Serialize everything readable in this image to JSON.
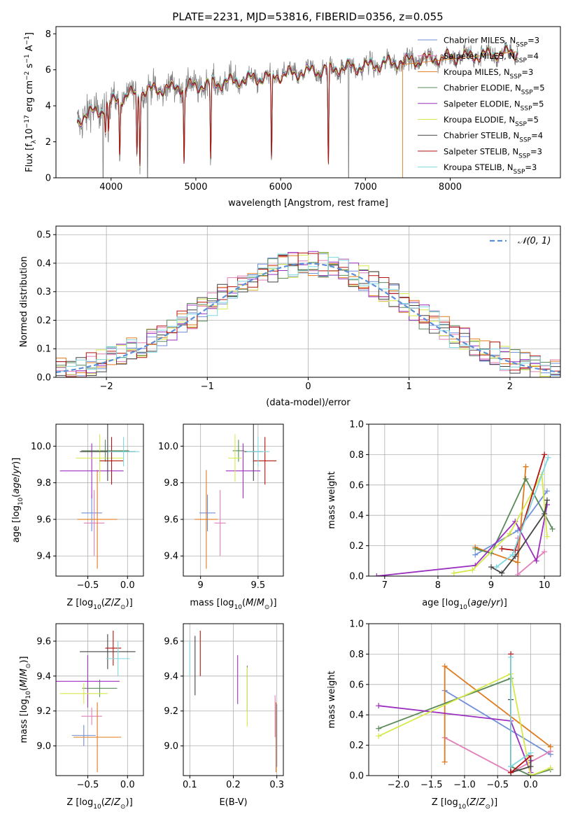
{
  "figure": {
    "title": "PLATE=2231, MJD=53816, FIBERID=0356, z=0.055"
  },
  "colors": {
    "spectrum": "#808080",
    "gaussian": "#5b8fd6",
    "grid": "#b0b0b0",
    "models": [
      "#6f8fd9",
      "#e07fb8",
      "#e07b1f",
      "#5a8a5a",
      "#9b30c0",
      "#d6e84a",
      "#444444",
      "#b3120f",
      "#7fd7df"
    ]
  },
  "models": [
    {
      "name": "Chabrier MILES",
      "nssp": "3"
    },
    {
      "name": "Salpeter MILES",
      "nssp": "4"
    },
    {
      "name": "Kroupa MILES",
      "nssp": "3"
    },
    {
      "name": "Chabrier ELODIE",
      "nssp": "5"
    },
    {
      "name": "Salpeter ELODIE",
      "nssp": "5"
    },
    {
      "name": "Kroupa ELODIE",
      "nssp": "5"
    },
    {
      "name": "Chabrier STELIB",
      "nssp": "4"
    },
    {
      "name": "Salpeter STELIB",
      "nssp": "3"
    },
    {
      "name": "Kroupa STELIB",
      "nssp": "3"
    }
  ],
  "chart_data": [
    {
      "id": "spectrum",
      "type": "line",
      "xlabel": "wavelength [Angstrom, rest frame]",
      "ylabel": "Flux [fλ10⁻¹⁷ erg cm⁻² s⁻¹ A⁻¹]",
      "xlim": [
        3350,
        9300
      ],
      "ylim": [
        0,
        8.4
      ],
      "xticks": [
        4000,
        5000,
        6000,
        7000,
        8000
      ],
      "yticks": [
        0,
        2,
        4,
        6,
        8
      ],
      "data_range": [
        3600,
        8800
      ],
      "continuum": [
        [
          3600,
          3.0
        ],
        [
          3700,
          3.6
        ],
        [
          3800,
          3.6
        ],
        [
          3900,
          3.8
        ],
        [
          4000,
          4.2
        ],
        [
          4200,
          4.6
        ],
        [
          4500,
          4.9
        ],
        [
          5000,
          5.1
        ],
        [
          5500,
          5.4
        ],
        [
          6000,
          5.7
        ],
        [
          6500,
          6.0
        ],
        [
          7000,
          6.2
        ],
        [
          7500,
          6.5
        ],
        [
          8000,
          6.7
        ],
        [
          8500,
          6.85
        ],
        [
          8800,
          7.0
        ]
      ],
      "absorption_lines": [
        [
          3934,
          2.6
        ],
        [
          3969,
          2.4
        ],
        [
          4102,
          1.2
        ],
        [
          4305,
          1.2
        ],
        [
          4340,
          1.0
        ],
        [
          4861,
          0.8
        ],
        [
          5175,
          0.9
        ],
        [
          5893,
          0.7
        ],
        [
          6563,
          0.5
        ]
      ],
      "dropouts": [
        [
          3905,
          0
        ],
        [
          4430,
          0
        ],
        [
          6802,
          0
        ]
      ]
    },
    {
      "id": "residuals",
      "type": "histogram",
      "xlabel": "(data-model)/error",
      "ylabel": "Normed distribution",
      "xlim": [
        -2.5,
        2.5
      ],
      "ylim": [
        0,
        0.53
      ],
      "xticks": [
        -2,
        -1,
        0,
        1,
        2
      ],
      "yticks": [
        0.0,
        0.1,
        0.2,
        0.3,
        0.4,
        0.5
      ],
      "bin_width": 0.1,
      "legend": "𝒩(0, 1)",
      "legend_position": "top-right",
      "gaussian": {
        "mu": 0,
        "sigma": 1
      }
    },
    {
      "id": "Z-age",
      "type": "scatter",
      "xlabel": "Z [log₁₀(Z/Z⊙)]",
      "ylabel": "age  [log₁₀(age/yr)]",
      "xlim": [
        -0.9,
        0.2
      ],
      "ylim": [
        9.29,
        10.12
      ],
      "xticks": [
        -0.5,
        0.0
      ],
      "yticks": [
        9.4,
        9.6,
        9.8,
        10.0
      ],
      "points": [
        {
          "x": -0.45,
          "y": 9.635,
          "xerr": 0.13,
          "yerr": 0.1
        },
        {
          "x": -0.42,
          "y": 9.58,
          "xerr": 0.13,
          "yerr": 0.18
        },
        {
          "x": -0.38,
          "y": 9.6,
          "xerr": 0.25,
          "yerr": 0.27
        },
        {
          "x": -0.28,
          "y": 9.975,
          "xerr": 0.3,
          "yerr": 0.06
        },
        {
          "x": -0.45,
          "y": 9.865,
          "xerr": 0.4,
          "yerr": 0.15
        },
        {
          "x": -0.35,
          "y": 9.935,
          "xerr": 0.3,
          "yerr": 0.13
        },
        {
          "x": -0.25,
          "y": 9.97,
          "xerr": 0.35,
          "yerr": 0.16
        },
        {
          "x": -0.2,
          "y": 9.92,
          "xerr": 0.15,
          "yerr": 0.13
        },
        {
          "x": -0.05,
          "y": 9.97,
          "xerr": 0.2,
          "yerr": 0.08
        }
      ]
    },
    {
      "id": "mass-age",
      "type": "scatter",
      "xlabel": "mass [log₁₀(M/M⊙)]",
      "ylabel": "",
      "xlim": [
        8.85,
        9.72
      ],
      "ylim": [
        9.29,
        10.12
      ],
      "xticks": [
        9.0,
        9.5
      ],
      "yticks": [
        9.4,
        9.6,
        9.8,
        10.0
      ],
      "points": [
        {
          "x": 9.06,
          "y": 9.635,
          "xerr": 0.07,
          "yerr": 0.1
        },
        {
          "x": 9.17,
          "y": 9.58,
          "xerr": 0.05,
          "yerr": 0.18
        },
        {
          "x": 9.05,
          "y": 9.6,
          "xerr": 0.1,
          "yerr": 0.27
        },
        {
          "x": 9.33,
          "y": 9.975,
          "xerr": 0.05,
          "yerr": 0.06
        },
        {
          "x": 9.37,
          "y": 9.865,
          "xerr": 0.15,
          "yerr": 0.15
        },
        {
          "x": 9.3,
          "y": 9.935,
          "xerr": 0.06,
          "yerr": 0.13
        },
        {
          "x": 9.46,
          "y": 9.97,
          "xerr": 0.08,
          "yerr": 0.16
        },
        {
          "x": 9.56,
          "y": 9.92,
          "xerr": 0.1,
          "yerr": 0.13
        },
        {
          "x": 9.5,
          "y": 9.97,
          "xerr": 0.1,
          "yerr": 0.08
        }
      ]
    },
    {
      "id": "age-weight",
      "type": "line",
      "xlabel": "age  [log₁₀(age/yr)]",
      "ylabel": "mass weight",
      "xlim": [
        6.7,
        10.3
      ],
      "ylim": [
        0,
        1.0
      ],
      "xticks": [
        7,
        8,
        9,
        10
      ],
      "yticks": [
        0.0,
        0.2,
        0.4,
        0.6,
        0.8,
        1.0
      ],
      "series": [
        {
          "x": [
            8.7,
            9.5,
            10.05
          ],
          "y": [
            0.14,
            0.3,
            0.56
          ]
        },
        {
          "x": [
            9.5,
            9.5,
            10.0
          ],
          "y": [
            0.25,
            0.01,
            0.16
          ]
        },
        {
          "x": [
            8.7,
            9.5,
            9.65,
            9.65
          ],
          "y": [
            0.19,
            0.09,
            0.72,
            0.72
          ]
        },
        {
          "x": [
            8.7,
            9.0,
            9.65,
            10.15
          ],
          "y": [
            0.18,
            0.15,
            0.64,
            0.31
          ]
        },
        {
          "x": [
            6.85,
            8.7,
            9.45,
            9.85,
            10.05
          ],
          "y": [
            0.0,
            0.07,
            0.36,
            0.1,
            0.47
          ]
        },
        {
          "x": [
            8.3,
            8.65,
            9.35,
            9.95,
            10.05
          ],
          "y": [
            0.02,
            0.04,
            0.28,
            0.67,
            0.26
          ]
        },
        {
          "x": [
            9.0,
            9.2,
            9.45,
            10.0,
            10.05
          ],
          "y": [
            0.06,
            0.02,
            0.13,
            0.41,
            0.5
          ]
        },
        {
          "x": [
            9.2,
            9.45,
            10.0
          ],
          "y": [
            0.18,
            0.17,
            0.8
          ]
        },
        {
          "x": [
            9.1,
            9.4,
            10.07
          ],
          "y": [
            0.06,
            0.14,
            0.78
          ]
        }
      ]
    },
    {
      "id": "Z-mass",
      "type": "scatter",
      "xlabel": "Z [log₁₀(Z/Z⊙)]",
      "ylabel": "mass [log₁₀(M/M⊙)]",
      "xlim": [
        -0.9,
        0.2
      ],
      "ylim": [
        8.83,
        9.7
      ],
      "xticks": [
        -0.5,
        0.0
      ],
      "yticks": [
        9.0,
        9.2,
        9.4,
        9.6
      ],
      "points": [
        {
          "x": -0.55,
          "y": 9.06,
          "xerr": 0.15,
          "yerr": 0.06
        },
        {
          "x": -0.45,
          "y": 9.17,
          "xerr": 0.13,
          "yerr": 0.05
        },
        {
          "x": -0.38,
          "y": 9.05,
          "xerr": 0.3,
          "yerr": 0.2
        },
        {
          "x": -0.35,
          "y": 9.33,
          "xerr": 0.22,
          "yerr": 0.05
        },
        {
          "x": -0.5,
          "y": 9.37,
          "xerr": 0.4,
          "yerr": 0.15
        },
        {
          "x": -0.55,
          "y": 9.3,
          "xerr": 0.3,
          "yerr": 0.06
        },
        {
          "x": -0.25,
          "y": 9.54,
          "xerr": 0.35,
          "yerr": 0.1
        },
        {
          "x": -0.18,
          "y": 9.56,
          "xerr": 0.1,
          "yerr": 0.1
        },
        {
          "x": -0.12,
          "y": 9.5,
          "xerr": 0.15,
          "yerr": 0.1
        }
      ]
    },
    {
      "id": "ebv-mass",
      "type": "scatter",
      "xlabel": "E(B-V)",
      "ylabel": "",
      "xlim": [
        0.085,
        0.315
      ],
      "ylim": [
        8.83,
        9.7
      ],
      "xticks": [
        0.1,
        0.2,
        0.3
      ],
      "yticks": [
        9.0,
        9.2,
        9.4,
        9.6
      ],
      "points": [
        {
          "x": 0.3,
          "y": 9.06,
          "xerr": 0,
          "yerr": 0.18
        },
        {
          "x": 0.296,
          "y": 9.17,
          "xerr": 0,
          "yerr": 0.12
        },
        {
          "x": 0.298,
          "y": 9.05,
          "xerr": 0,
          "yerr": 0.2
        },
        {
          "x": 0.232,
          "y": 9.33,
          "xerr": 0,
          "yerr": 0.13
        },
        {
          "x": 0.21,
          "y": 9.38,
          "xerr": 0,
          "yerr": 0.14
        },
        {
          "x": 0.232,
          "y": 9.28,
          "xerr": 0,
          "yerr": 0.17
        },
        {
          "x": 0.112,
          "y": 9.46,
          "xerr": 0,
          "yerr": 0.17
        },
        {
          "x": 0.124,
          "y": 9.53,
          "xerr": 0,
          "yerr": 0.13
        },
        {
          "x": 0.1,
          "y": 9.5,
          "xerr": 0,
          "yerr": 0.1
        }
      ]
    },
    {
      "id": "Z-weight",
      "type": "line",
      "xlabel": "Z [log₁₀(Z/Z⊙)]",
      "ylabel": "mass weight",
      "xlim": [
        -2.45,
        0.45
      ],
      "ylim": [
        0,
        1.0
      ],
      "xticks": [
        -2.0,
        -1.5,
        -1.0,
        -0.5,
        0.0
      ],
      "yticks": [
        0.0,
        0.2,
        0.4,
        0.6,
        0.8,
        1.0
      ],
      "series": [
        {
          "x": [
            -1.3,
            0.3
          ],
          "y": [
            0.56,
            0.14
          ]
        },
        {
          "x": [
            -1.3,
            -0.3,
            0.3
          ],
          "y": [
            0.25,
            0.02,
            0.16
          ]
        },
        {
          "x": [
            -1.3,
            -1.3,
            0.3,
            0.3
          ],
          "y": [
            0.09,
            0.72,
            0.19,
            0.19
          ]
        },
        {
          "x": [
            -2.3,
            -0.3,
            -0.3,
            0.0,
            0.3
          ],
          "y": [
            0.31,
            0.64,
            0.06,
            0.0,
            0.04
          ]
        },
        {
          "x": [
            -2.3,
            -0.3,
            0.0,
            0.0
          ],
          "y": [
            0.46,
            0.36,
            0.02,
            0.1
          ]
        },
        {
          "x": [
            -2.3,
            -0.3,
            0.0,
            0.3
          ],
          "y": [
            0.26,
            0.67,
            0.0,
            0.05
          ]
        },
        {
          "x": [
            -0.3,
            -0.3,
            0.0,
            0.0
          ],
          "y": [
            0.5,
            0.02,
            0.06,
            0.13
          ]
        },
        {
          "x": [
            -0.3,
            -0.3,
            0.0
          ],
          "y": [
            0.8,
            0.02,
            0.13
          ]
        },
        {
          "x": [
            -0.3,
            -0.3,
            0.0
          ],
          "y": [
            0.78,
            0.06,
            0.15
          ]
        }
      ]
    }
  ]
}
